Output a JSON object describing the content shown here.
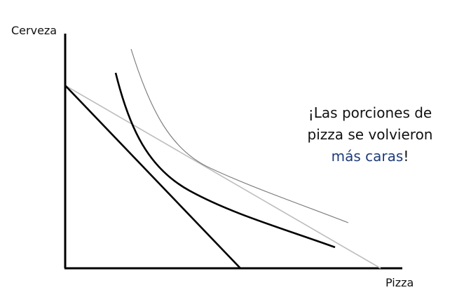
{
  "axes": {
    "y_label": "Cerveza",
    "x_label": "Pizza"
  },
  "callout": {
    "line1": "¡Las porciones de",
    "line2": "pizza se volvieron",
    "line3_highlight": "más caras",
    "line3_end": "!"
  },
  "colors": {
    "axis": "#000000",
    "new_budget_line": "#000000",
    "old_budget_line": "#bdbdbd",
    "indifference_curve_low": "#000000",
    "indifference_curve_high": "#7f7f7f",
    "highlight_text": "#1f3c7a"
  }
}
